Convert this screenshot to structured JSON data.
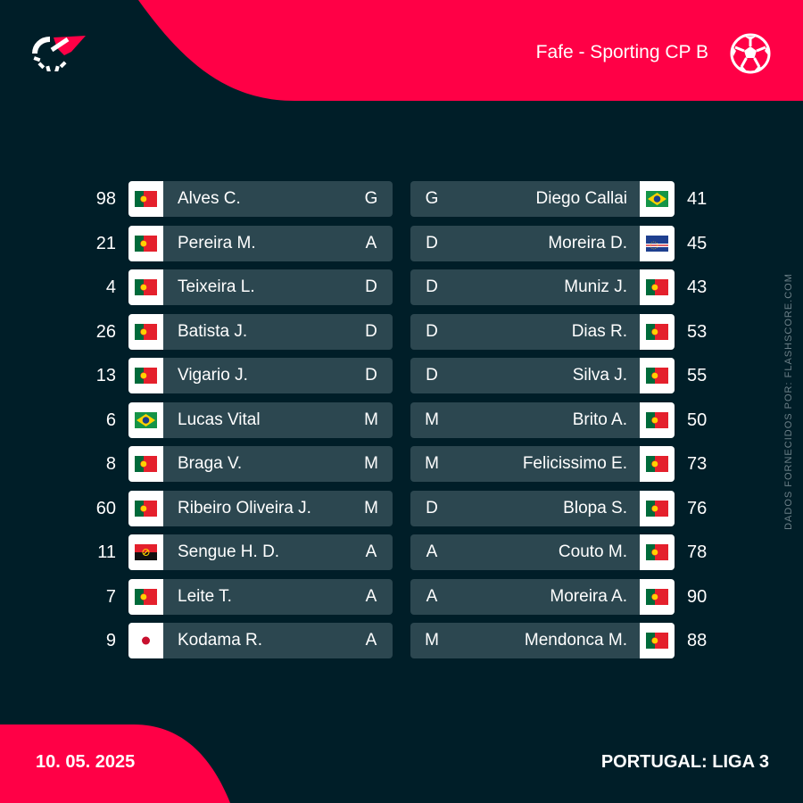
{
  "header": {
    "match_title": "Fafe - Sporting CP B",
    "brand_color": "#ff0046",
    "background_color": "#001e28",
    "row_color": "#2c4750"
  },
  "footer": {
    "date": "10. 05. 2025",
    "league": "PORTUGAL: LIGA 3"
  },
  "side_credit": "DADOS FORNECIDOS POR: FLASHSCORE.COM",
  "home_lineup": [
    {
      "number": "98",
      "flag": "portugal",
      "name": "Alves C.",
      "position": "G"
    },
    {
      "number": "21",
      "flag": "portugal",
      "name": "Pereira M.",
      "position": "A"
    },
    {
      "number": "4",
      "flag": "portugal",
      "name": "Teixeira L.",
      "position": "D"
    },
    {
      "number": "26",
      "flag": "portugal",
      "name": "Batista J.",
      "position": "D"
    },
    {
      "number": "13",
      "flag": "portugal",
      "name": "Vigario J.",
      "position": "D"
    },
    {
      "number": "6",
      "flag": "brazil",
      "name": "Lucas Vital",
      "position": "M"
    },
    {
      "number": "8",
      "flag": "portugal",
      "name": "Braga V.",
      "position": "M"
    },
    {
      "number": "60",
      "flag": "portugal",
      "name": "Ribeiro Oliveira J.",
      "position": "M"
    },
    {
      "number": "11",
      "flag": "angola",
      "name": "Sengue H. D.",
      "position": "A"
    },
    {
      "number": "7",
      "flag": "portugal",
      "name": "Leite T.",
      "position": "A"
    },
    {
      "number": "9",
      "flag": "japan",
      "name": "Kodama R.",
      "position": "A"
    }
  ],
  "away_lineup": [
    {
      "number": "41",
      "flag": "brazil",
      "name": "Diego Callai",
      "position": "G"
    },
    {
      "number": "45",
      "flag": "cape-verde",
      "name": "Moreira D.",
      "position": "D"
    },
    {
      "number": "43",
      "flag": "portugal",
      "name": "Muniz J.",
      "position": "D"
    },
    {
      "number": "53",
      "flag": "portugal",
      "name": "Dias R.",
      "position": "D"
    },
    {
      "number": "55",
      "flag": "portugal",
      "name": "Silva J.",
      "position": "D"
    },
    {
      "number": "50",
      "flag": "portugal",
      "name": "Brito A.",
      "position": "M"
    },
    {
      "number": "73",
      "flag": "portugal",
      "name": "Felicissimo E.",
      "position": "M"
    },
    {
      "number": "76",
      "flag": "portugal",
      "name": "Blopa S.",
      "position": "D"
    },
    {
      "number": "78",
      "flag": "portugal",
      "name": "Couto M.",
      "position": "A"
    },
    {
      "number": "90",
      "flag": "portugal",
      "name": "Moreira A.",
      "position": "A"
    },
    {
      "number": "88",
      "flag": "portugal",
      "name": "Mendonca M.",
      "position": "M"
    }
  ]
}
